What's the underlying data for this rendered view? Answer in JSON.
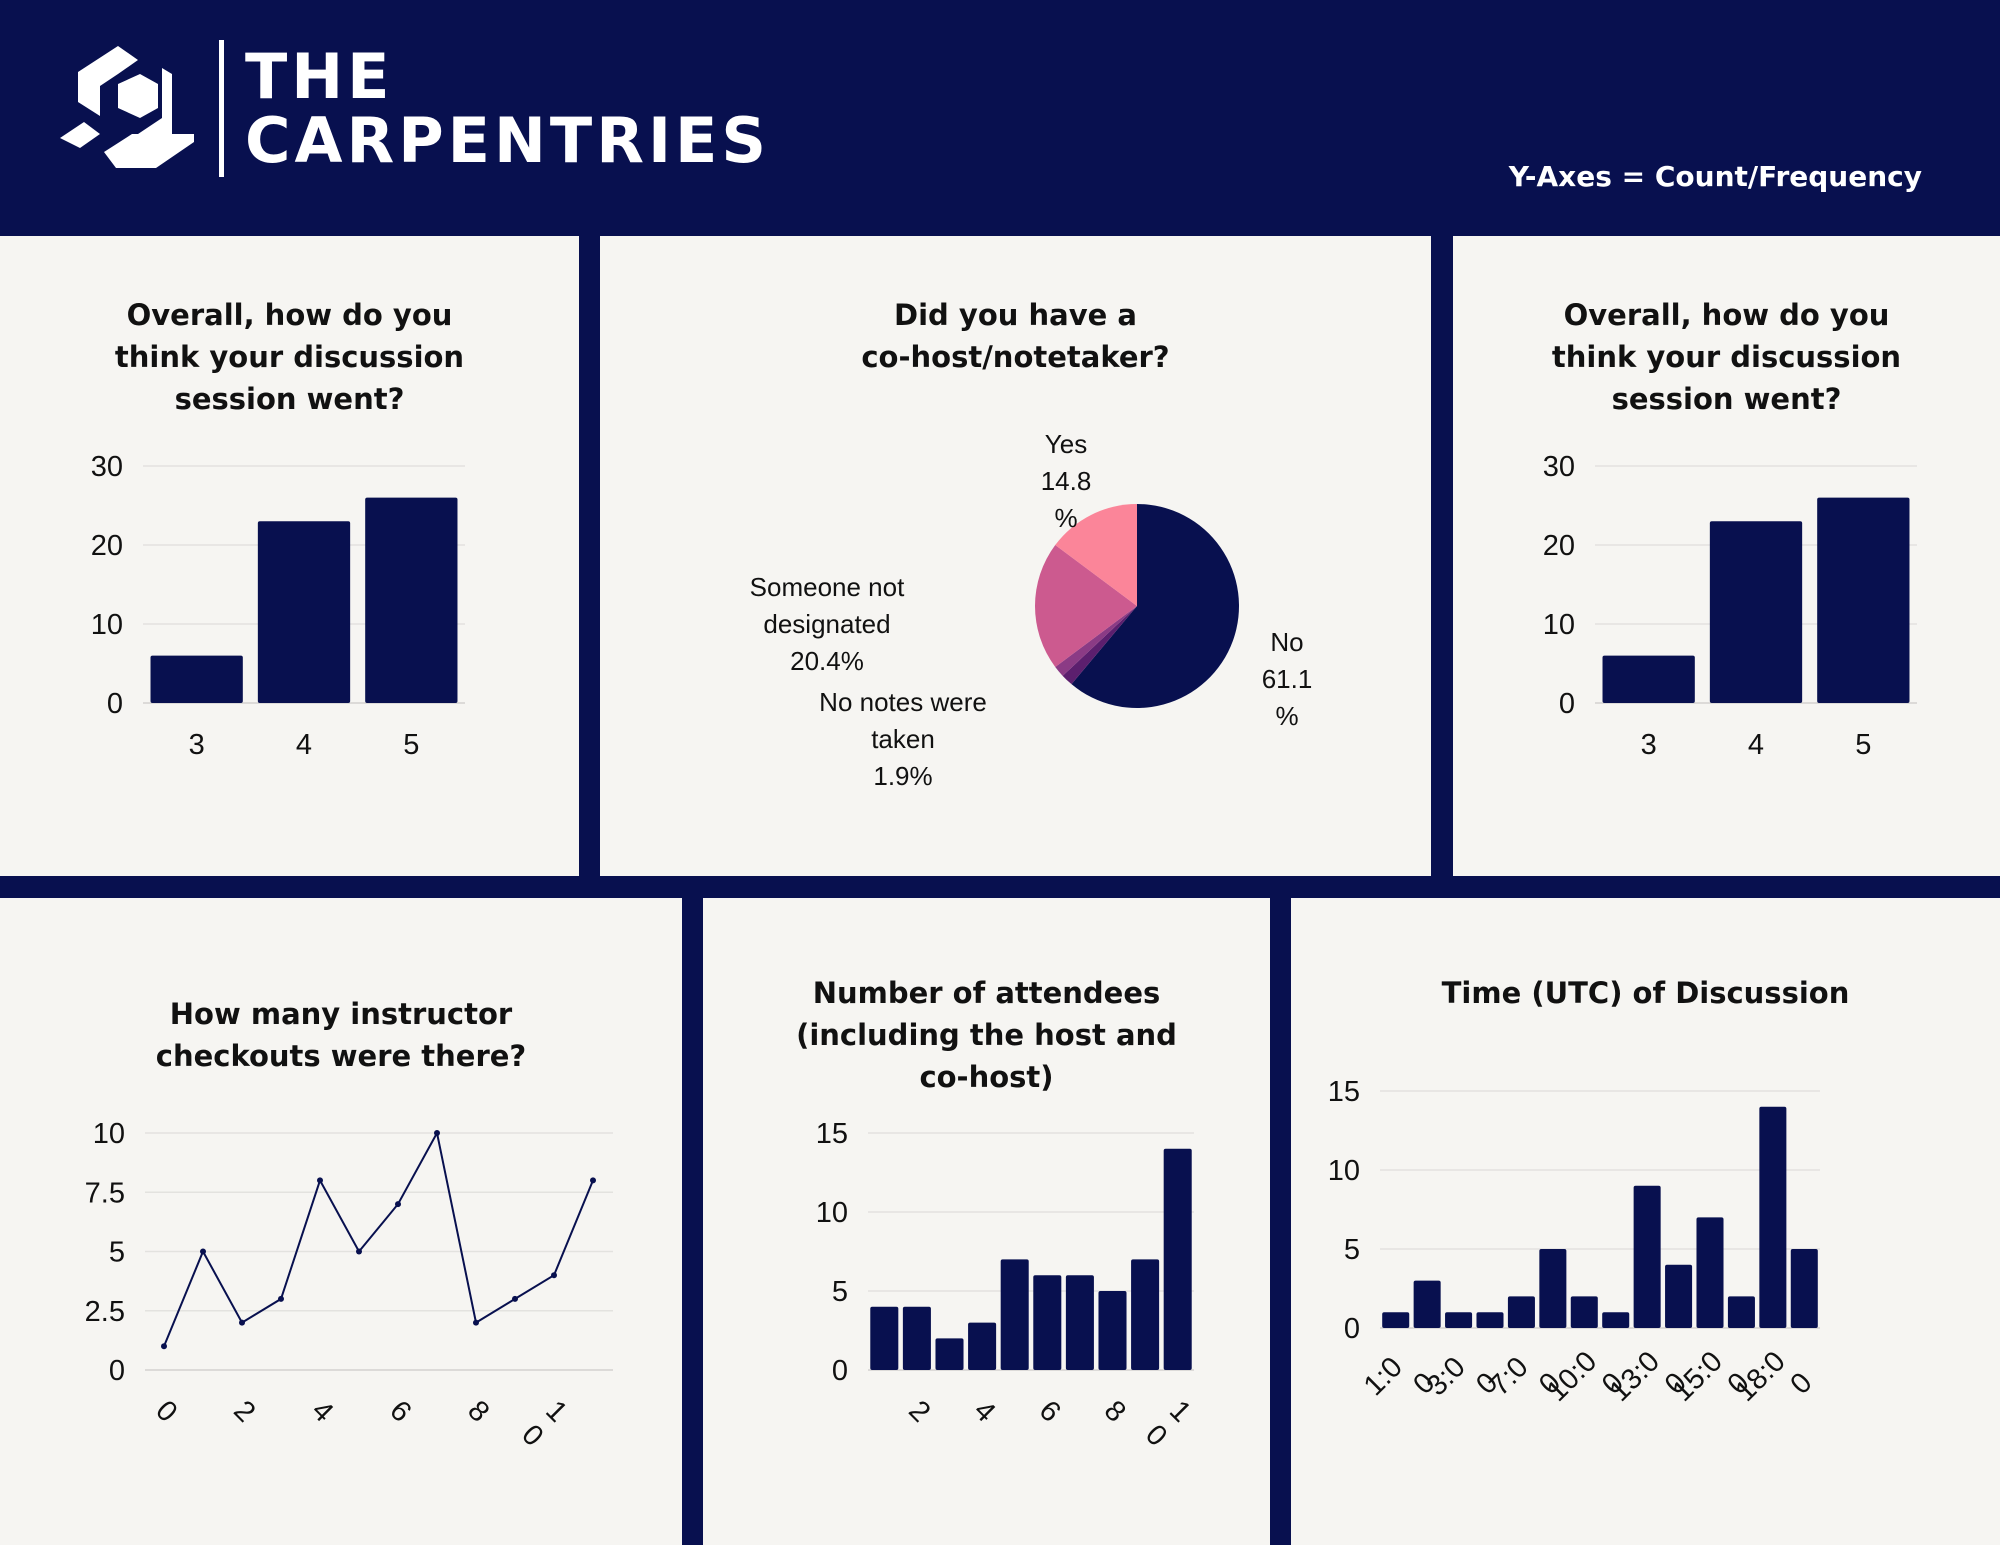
{
  "header": {
    "logo_line1": "THE",
    "logo_line2": "CARPENTRIES",
    "axes_note": "Y-Axes = Count/Frequency",
    "background": "#08104f"
  },
  "colors": {
    "bar": "#08104f",
    "panel": "#f6f5f2",
    "grid": "#e3e2df"
  },
  "chart_data": [
    {
      "type": "bar",
      "title": "Overall, how do you\nthink your discussion\nsession went?",
      "categories": [
        "3",
        "4",
        "5"
      ],
      "values": [
        6,
        23,
        26
      ],
      "ylim": [
        0,
        30
      ],
      "yticks": [
        0,
        10,
        20,
        30
      ],
      "grid": true
    },
    {
      "type": "pie",
      "title": "Did you have a\nco-host/notetaker?",
      "slices": [
        {
          "label": "No",
          "value_text": "61.1\n%",
          "value": 61.1,
          "color": "#08104f"
        },
        {
          "label": "No notes were taken",
          "value_text": "1.9%",
          "value": 1.9,
          "color": "#5c1f6e"
        },
        {
          "label": "(unlabeled)",
          "value_text": "",
          "value": 1.8,
          "color": "#8b3b85"
        },
        {
          "label": "Someone not designated",
          "value_text": "20.4%",
          "value": 20.4,
          "color": "#cc5a8f"
        },
        {
          "label": "Yes",
          "value_text": "14.8\n%",
          "value": 14.8,
          "color": "#fb8599"
        }
      ],
      "labels": {
        "yes": "Yes\n14.8\n%",
        "no": "No\n61.1\n%",
        "someone": "Someone not\ndesignated\n20.4%",
        "nonotes": "No notes were\ntaken\n1.9%"
      }
    },
    {
      "type": "bar",
      "title": "Overall, how do you\nthink your discussion\nsession went?",
      "categories": [
        "3",
        "4",
        "5"
      ],
      "values": [
        6,
        23,
        26
      ],
      "ylim": [
        0,
        30
      ],
      "yticks": [
        0,
        10,
        20,
        30
      ],
      "grid": true
    },
    {
      "type": "line",
      "title": "How many instructor\ncheckouts were there?",
      "x": [
        0,
        1,
        2,
        3,
        4,
        5,
        6,
        7,
        8,
        9,
        10,
        11
      ],
      "values": [
        1,
        5,
        2,
        3,
        8,
        5,
        7,
        10,
        2,
        3,
        4,
        8
      ],
      "xticks": [
        "0",
        "2",
        "4",
        "6",
        "8",
        "10"
      ],
      "ylim": [
        0,
        10
      ],
      "yticks": [
        "0",
        "2.5",
        "5",
        "7.5",
        "10"
      ],
      "grid": true
    },
    {
      "type": "bar",
      "title": "Number of attendees\n(including the host and\nco-host)",
      "x": [
        1,
        2,
        3,
        4,
        5,
        6,
        7,
        8,
        9,
        10
      ],
      "values": [
        4,
        4,
        2,
        3,
        7,
        6,
        6,
        5,
        7,
        14
      ],
      "xticks": [
        "2",
        "4",
        "6",
        "8",
        "10"
      ],
      "ylim": [
        0,
        15
      ],
      "yticks": [
        0,
        5,
        10,
        15
      ],
      "grid": true
    },
    {
      "type": "bar",
      "title": "Time (UTC) of Discussion",
      "values": [
        1,
        3,
        1,
        1,
        2,
        5,
        2,
        1,
        9,
        4,
        7,
        2,
        14,
        5
      ],
      "xticks": [
        "1:00",
        "3:00",
        "7:00",
        "10:00",
        "13:00",
        "15:00",
        "18:00"
      ],
      "ylim": [
        0,
        15
      ],
      "yticks": [
        0,
        5,
        10,
        15
      ],
      "grid": true
    }
  ]
}
